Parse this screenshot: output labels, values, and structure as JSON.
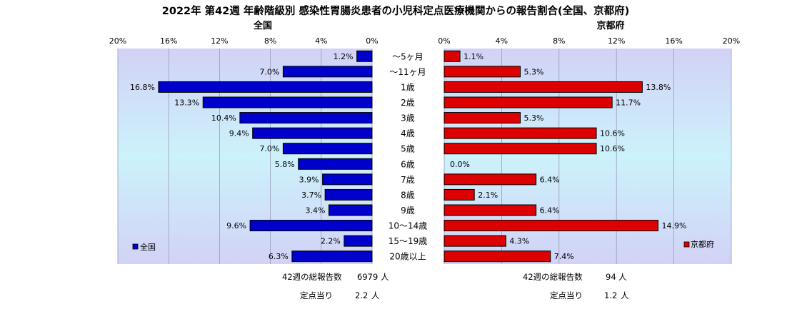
{
  "chart_data": {
    "type": "bar",
    "orientation": "horizontal",
    "layout": "back-to-back",
    "title": "2022年 第42週  年齢階級別 感染性胃腸炎患者の小児科定点医療機関からの報告割合(全国、京都府)",
    "categories": [
      "～5ヶ月",
      "～11ヶ月",
      "1歳",
      "2歳",
      "3歳",
      "4歳",
      "5歳",
      "6歳",
      "7歳",
      "8歳",
      "9歳",
      "10～14歳",
      "15～19歳",
      "20歳以上"
    ],
    "xlim": [
      0,
      20
    ],
    "xticks": [
      "20%",
      "16%",
      "12%",
      "8%",
      "4%",
      "0%"
    ],
    "xticks_right": [
      "0%",
      "4%",
      "8%",
      "12%",
      "16%",
      "20%"
    ],
    "grid": true,
    "unit": "%",
    "series": [
      {
        "name": "全国",
        "panel_title": "全国",
        "side": "left",
        "color": "#0000cc",
        "legend_position": "bottom-left",
        "values": [
          1.2,
          7.0,
          16.8,
          13.3,
          10.4,
          9.4,
          7.0,
          5.8,
          3.9,
          3.7,
          3.4,
          9.6,
          2.2,
          6.3
        ],
        "labels": [
          "1.2%",
          "7.0%",
          "16.8%",
          "13.3%",
          "10.4%",
          "9.4%",
          "7.0%",
          "5.8%",
          "3.9%",
          "3.7%",
          "3.4%",
          "9.6%",
          "2.2%",
          "6.3%"
        ]
      },
      {
        "name": "京都府",
        "panel_title": "京都府",
        "side": "right",
        "color": "#dd0000",
        "legend_position": "bottom-right",
        "values": [
          1.1,
          5.3,
          13.8,
          11.7,
          5.3,
          10.6,
          10.6,
          0.0,
          6.4,
          2.1,
          6.4,
          14.9,
          4.3,
          7.4
        ],
        "labels": [
          "1.1%",
          "5.3%",
          "13.8%",
          "11.7%",
          "5.3%",
          "10.6%",
          "10.6%",
          "0.0%",
          "6.4%",
          "2.1%",
          "6.4%",
          "14.9%",
          "4.3%",
          "7.4%"
        ]
      }
    ]
  },
  "footer": {
    "national": {
      "total_label": "42週の総報告数",
      "total_value": "6979",
      "total_unit": "人",
      "per_label": "定点当り",
      "per_value": "2.2",
      "per_unit": "人"
    },
    "kyoto": {
      "total_label": "42週の総報告数",
      "total_value": "94",
      "total_unit": "人",
      "per_label": "定点当り",
      "per_value": "1.2",
      "per_unit": "人"
    }
  }
}
